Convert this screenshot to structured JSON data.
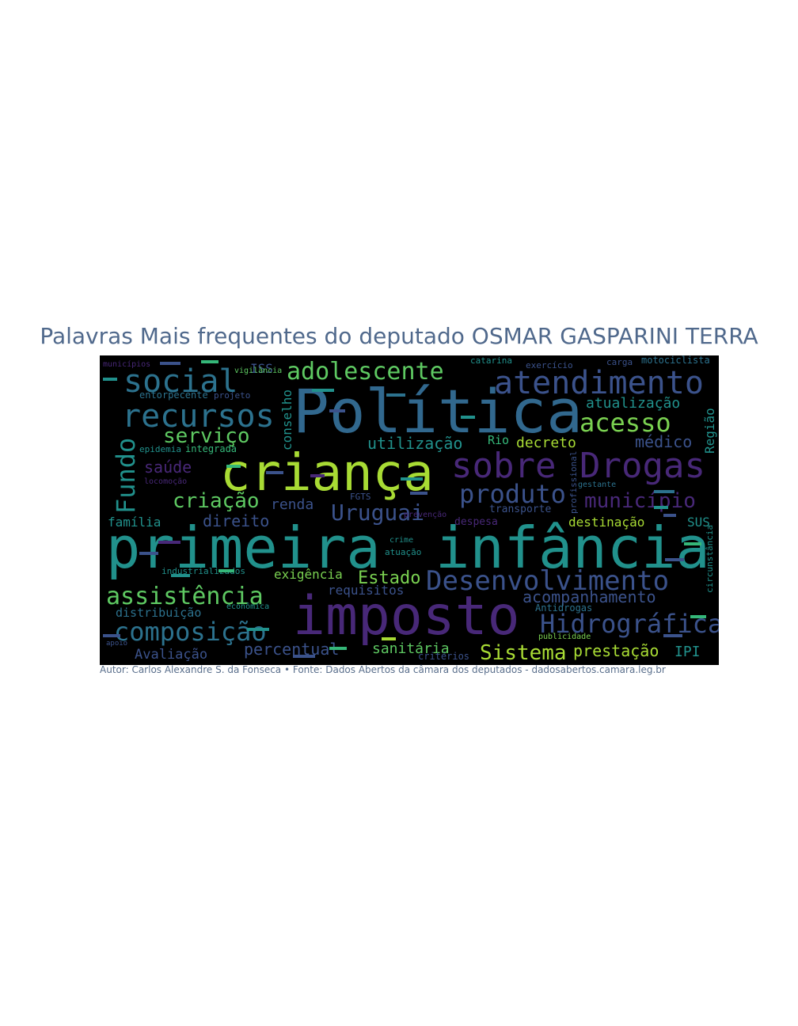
{
  "title": "Palavras Mais frequentes do deputado OSMAR GASPARINI TERRA",
  "credit": "Autor: Carlos Alexandre S. da Fonseca • Fonte: Dados Abertos da câmara dos deputados - dadosabertos.camara.leg.br",
  "colors": {
    "title": "#50698c",
    "background": "#000000",
    "palette": [
      "#440154",
      "#3b528b",
      "#21918c",
      "#5ec962",
      "#a8db34",
      "#31688e",
      "#35b779",
      "#482878"
    ]
  },
  "words": [
    {
      "text": "Política",
      "color": "#31688e"
    },
    {
      "text": "primeira",
      "color": "#21918c"
    },
    {
      "text": "infância",
      "color": "#21918c"
    },
    {
      "text": "criança",
      "color": "#a8db34"
    },
    {
      "text": "imposto",
      "color": "#482878"
    },
    {
      "text": "Drogas",
      "color": "#482878"
    },
    {
      "text": "sobre",
      "color": "#482878"
    },
    {
      "text": "atendimento",
      "color": "#3b528b"
    },
    {
      "text": "recursos",
      "color": "#2c728e"
    },
    {
      "text": "social",
      "color": "#2c728e"
    },
    {
      "text": "Desenvolvimento",
      "color": "#3b528b"
    },
    {
      "text": "adolescente",
      "color": "#5ec962"
    },
    {
      "text": "acesso",
      "color": "#7ad151"
    },
    {
      "text": "assistência",
      "color": "#5ec962"
    },
    {
      "text": "composição",
      "color": "#2c728e"
    },
    {
      "text": "Hidrográfica",
      "color": "#3b528b"
    },
    {
      "text": "produto",
      "color": "#3b528b"
    },
    {
      "text": "Fundo",
      "color": "#21918c"
    },
    {
      "text": "serviço",
      "color": "#5ec962"
    },
    {
      "text": "criação",
      "color": "#5ec962"
    },
    {
      "text": "município",
      "color": "#482878"
    },
    {
      "text": "Uruguai",
      "color": "#3b528b"
    },
    {
      "text": "Sistema",
      "color": "#a8db34"
    },
    {
      "text": "prestação",
      "color": "#a8db34"
    },
    {
      "text": "sanitária",
      "color": "#5ec962"
    },
    {
      "text": "percentual",
      "color": "#3b528b"
    },
    {
      "text": "acompanhamento",
      "color": "#3b528b"
    },
    {
      "text": "Estado",
      "color": "#7ad151"
    },
    {
      "text": "médico",
      "color": "#3b528b"
    },
    {
      "text": "utilização",
      "color": "#21918c"
    },
    {
      "text": "atualização",
      "color": "#21918c"
    },
    {
      "text": "decreto",
      "color": "#a8db34"
    },
    {
      "text": "saúde",
      "color": "#482878"
    },
    {
      "text": "direito",
      "color": "#3b528b"
    },
    {
      "text": "família",
      "color": "#21918c"
    },
    {
      "text": "renda",
      "color": "#3b528b"
    },
    {
      "text": "destinação",
      "color": "#a8db34"
    },
    {
      "text": "requisitos",
      "color": "#3b528b"
    },
    {
      "text": "exigência",
      "color": "#7ad151"
    },
    {
      "text": "distribuição",
      "color": "#2c728e"
    },
    {
      "text": "Avaliação",
      "color": "#3b528b"
    },
    {
      "text": "IPI",
      "color": "#21918c"
    },
    {
      "text": "SUS",
      "color": "#21918c"
    },
    {
      "text": "conselho",
      "color": "#21918c"
    },
    {
      "text": "Região",
      "color": "#21918c"
    },
    {
      "text": "ISS",
      "color": "#3b528b"
    },
    {
      "text": "Rio",
      "color": "#35b779"
    },
    {
      "text": "transporte",
      "color": "#3b528b"
    },
    {
      "text": "despesa",
      "color": "#482878"
    },
    {
      "text": "Antidrogas",
      "color": "#2c728e"
    },
    {
      "text": "critérios",
      "color": "#3b528b"
    },
    {
      "text": "crime",
      "color": "#21918c"
    },
    {
      "text": "entorpecente",
      "color": "#2c728e"
    },
    {
      "text": "projeto",
      "color": "#3b528b"
    },
    {
      "text": "vigilância",
      "color": "#5ec962"
    },
    {
      "text": "integrada",
      "color": "#35b779"
    },
    {
      "text": "epidemia",
      "color": "#21918c"
    },
    {
      "text": "catarina",
      "color": "#21918c"
    },
    {
      "text": "exercício",
      "color": "#3b528b"
    },
    {
      "text": "carga",
      "color": "#3b528b"
    },
    {
      "text": "motociclista",
      "color": "#2c728e"
    },
    {
      "text": "industrializados",
      "color": "#21918c"
    },
    {
      "text": "econômica",
      "color": "#21918c"
    },
    {
      "text": "locomoção",
      "color": "#482878"
    },
    {
      "text": "profissional",
      "color": "#3b528b"
    },
    {
      "text": "circunstância",
      "color": "#21918c"
    },
    {
      "text": "publicidade",
      "color": "#7ad151"
    },
    {
      "text": "prevenção",
      "color": "#482878"
    },
    {
      "text": "atuação",
      "color": "#21918c"
    },
    {
      "text": "gestante",
      "color": "#2c728e"
    },
    {
      "text": "FGTS",
      "color": "#3b528b"
    },
    {
      "text": "apoio",
      "color": "#3b528b"
    },
    {
      "text": "municípios",
      "color": "#482878"
    }
  ]
}
